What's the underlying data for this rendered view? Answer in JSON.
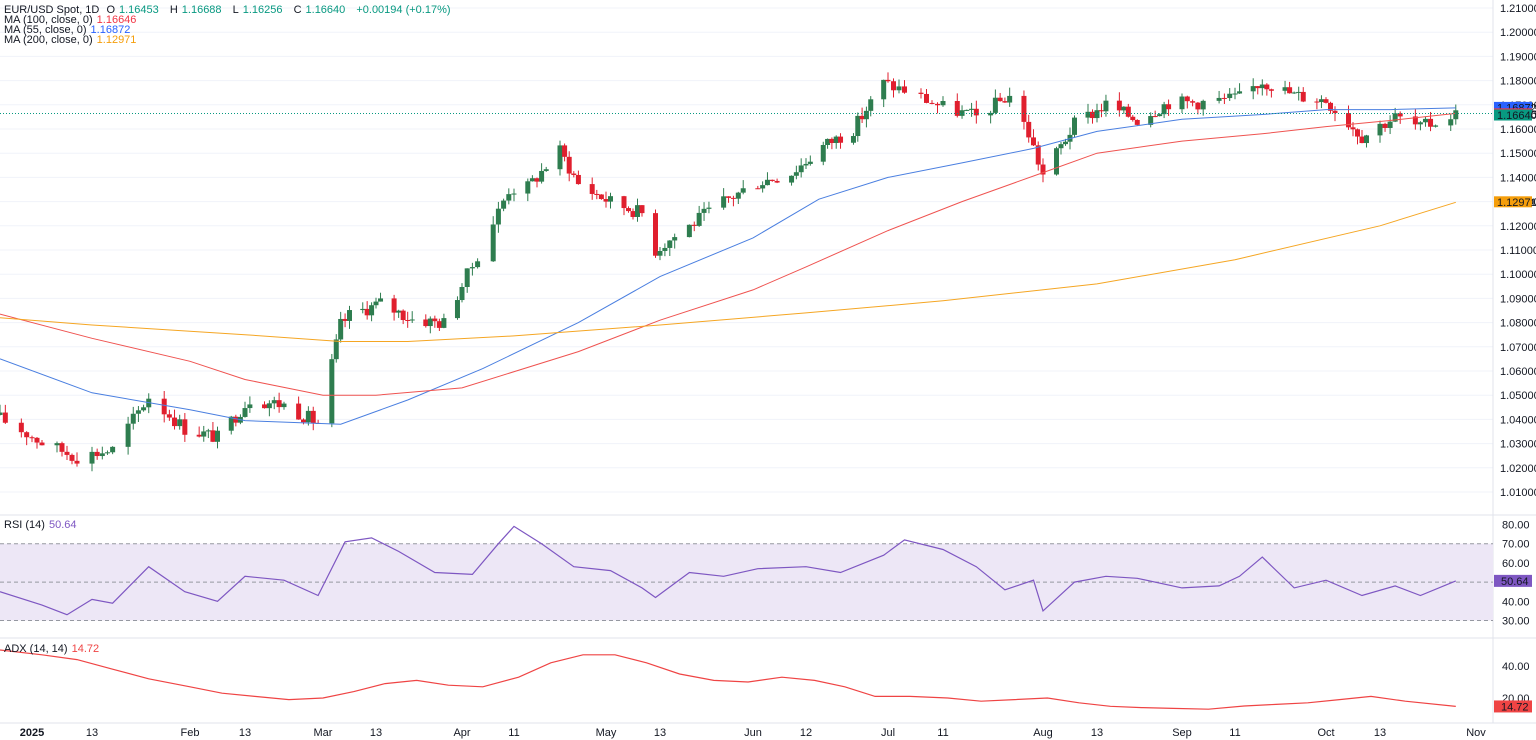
{
  "legend": {
    "title": "EUR/USD Spot, 1D",
    "o_label": "O",
    "o": "1.16453",
    "h_label": "H",
    "h": "1.16688",
    "l_label": "L",
    "l": "1.16256",
    "c_label": "C",
    "c": "1.16640",
    "chg": "+0.00194 (+0.17%)",
    "ma100_label": "MA (100, close, 0)",
    "ma100": "1.16646",
    "ma55_label": "MA (55, close, 0)",
    "ma55": "1.16872",
    "ma200_label": "MA (200, close, 0)",
    "ma200": "1.12971",
    "rsi_label": "RSI (14)",
    "rsi": "50.64",
    "adx_label": "ADX (14, 14)",
    "adx": "14.72"
  },
  "colors": {
    "up": "#089981",
    "candle_up": "#2e7d4f",
    "candle_down": "#e01f2e",
    "ma55": "#4a7fe0",
    "ma100": "#ef5350",
    "ma200": "#f5a623",
    "rsi": "#7e57c2",
    "rsi_band": "#ede7f6",
    "adx": "#ef4444",
    "last_price": "#089981"
  },
  "chart_data": [
    {
      "type": "candlestick",
      "title": "EUR/USD Spot, 1D",
      "y_ticks": [
        1.21,
        1.2,
        1.19,
        1.18,
        1.17,
        1.16,
        1.15,
        1.14,
        1.13,
        1.12,
        1.11,
        1.1,
        1.09,
        1.08,
        1.07,
        1.06,
        1.05,
        1.04,
        1.03,
        1.02,
        1.01
      ],
      "y_tick_labels": [
        "1.21000",
        "1.20000",
        "1.19000",
        "1.18000",
        "1.17000",
        "1.16000",
        "1.15000",
        "1.14000",
        "1.13000",
        "1.12000",
        "1.11000",
        "1.10000",
        "1.09000",
        "1.08000",
        "1.07000",
        "1.06000",
        "1.05000",
        "1.04000",
        "1.03000",
        "1.02000",
        "1.01000"
      ],
      "x_tick_labels": [
        "2025",
        "13",
        "Feb",
        "13",
        "Mar",
        "13",
        "Apr",
        "11",
        "May",
        "13",
        "Jun",
        "12",
        "Jul",
        "11",
        "Aug",
        "13",
        "Sep",
        "11",
        "Oct",
        "13",
        "Nov"
      ],
      "x_tick_dates": [
        "2025-01-01",
        "2025-01-13",
        "2025-02-01",
        "2025-02-13",
        "2025-03-01",
        "2025-03-13",
        "2025-04-01",
        "2025-04-11",
        "2025-05-01",
        "2025-05-13",
        "2025-06-01",
        "2025-06-12",
        "2025-07-01",
        "2025-07-11",
        "2025-08-01",
        "2025-08-13",
        "2025-09-01",
        "2025-09-11",
        "2025-10-01",
        "2025-10-13",
        "2025-11-01"
      ],
      "price_labels": [
        {
          "value": 1.16872,
          "text": "1.16872",
          "color": "#2962ff"
        },
        {
          "value": 1.16646,
          "text": "1.16646",
          "color": "#f23645"
        },
        {
          "value": 1.1664,
          "text": "1.16640",
          "color": "#089981"
        },
        {
          "value": 1.12971,
          "text": "1.12971",
          "color": "#f59e0b"
        }
      ],
      "close_series": {
        "dates": [
          "2024-12-26",
          "2025-01-03",
          "2025-01-10",
          "2025-01-17",
          "2025-01-24",
          "2025-01-31",
          "2025-02-07",
          "2025-02-14",
          "2025-02-21",
          "2025-02-28",
          "2025-03-05",
          "2025-03-07",
          "2025-03-14",
          "2025-03-21",
          "2025-03-28",
          "2025-04-03",
          "2025-04-10",
          "2025-04-14",
          "2025-04-21",
          "2025-04-25",
          "2025-05-02",
          "2025-05-09",
          "2025-05-12",
          "2025-05-19",
          "2025-05-26",
          "2025-06-02",
          "2025-06-09",
          "2025-06-16",
          "2025-06-23",
          "2025-06-30",
          "2025-07-04",
          "2025-07-11",
          "2025-07-18",
          "2025-07-25",
          "2025-07-29",
          "2025-08-01",
          "2025-08-08",
          "2025-08-15",
          "2025-08-22",
          "2025-08-29",
          "2025-09-05",
          "2025-09-12",
          "2025-09-17",
          "2025-09-24",
          "2025-10-01",
          "2025-10-09",
          "2025-10-16",
          "2025-10-21",
          "2025-10-28"
        ],
        "close": [
          1.0405,
          1.0305,
          1.0245,
          1.0275,
          1.0495,
          1.0362,
          1.0325,
          1.0485,
          1.046,
          1.0385,
          1.079,
          1.083,
          1.088,
          1.0815,
          1.0798,
          1.1035,
          1.135,
          1.136,
          1.151,
          1.1372,
          1.13,
          1.1253,
          1.11,
          1.12,
          1.13,
          1.138,
          1.142,
          1.153,
          1.16,
          1.179,
          1.176,
          1.169,
          1.165,
          1.174,
          1.158,
          1.141,
          1.162,
          1.17,
          1.164,
          1.171,
          1.171,
          1.173,
          1.18,
          1.174,
          1.172,
          1.157,
          1.165,
          1.1605,
          1.1664
        ]
      },
      "ma": [
        {
          "name": "MA (55, close, 0)",
          "dates": [
            "2024-12-26",
            "2025-01-13",
            "2025-02-01",
            "2025-02-13",
            "2025-03-05",
            "2025-03-20",
            "2025-04-05",
            "2025-04-25",
            "2025-05-13",
            "2025-06-01",
            "2025-06-15",
            "2025-07-01",
            "2025-07-15",
            "2025-07-30",
            "2025-08-13",
            "2025-09-01",
            "2025-09-17",
            "2025-10-01",
            "2025-10-15",
            "2025-10-28"
          ],
          "values": [
            1.065,
            1.051,
            1.044,
            1.0395,
            1.038,
            1.048,
            1.061,
            1.08,
            1.099,
            1.115,
            1.131,
            1.14,
            1.146,
            1.152,
            1.159,
            1.164,
            1.166,
            1.168,
            1.168,
            1.1687
          ]
        },
        {
          "name": "MA (100, close, 0)",
          "dates": [
            "2024-12-26",
            "2025-01-13",
            "2025-02-01",
            "2025-02-13",
            "2025-03-01",
            "2025-03-13",
            "2025-04-01",
            "2025-04-25",
            "2025-05-13",
            "2025-06-01",
            "2025-06-12",
            "2025-07-01",
            "2025-07-15",
            "2025-08-01",
            "2025-08-13",
            "2025-09-01",
            "2025-09-17",
            "2025-10-01",
            "2025-10-15",
            "2025-10-28"
          ],
          "values": [
            1.0835,
            1.0735,
            1.064,
            1.0565,
            1.05,
            1.05,
            1.053,
            1.068,
            1.081,
            1.0935,
            1.103,
            1.118,
            1.13,
            1.142,
            1.15,
            1.155,
            1.158,
            1.161,
            1.1635,
            1.16646
          ]
        },
        {
          "name": "MA (200, close, 0)",
          "dates": [
            "2024-12-26",
            "2025-01-13",
            "2025-02-13",
            "2025-03-05",
            "2025-03-20",
            "2025-04-11",
            "2025-05-13",
            "2025-06-12",
            "2025-07-11",
            "2025-08-13",
            "2025-09-11",
            "2025-10-13",
            "2025-10-28"
          ],
          "values": [
            1.082,
            1.079,
            1.075,
            1.0722,
            1.0722,
            1.0745,
            1.079,
            1.084,
            1.089,
            1.096,
            1.106,
            1.12,
            1.12971
          ]
        }
      ]
    },
    {
      "type": "line",
      "title": "RSI (14)",
      "y_tick_labels": [
        "80.00",
        "70.00",
        "60.00",
        "40.00",
        "30.00"
      ],
      "y_ticks": [
        80,
        70,
        60,
        40,
        30
      ],
      "band": [
        30,
        70
      ],
      "midline": 50,
      "last_label": "50.64",
      "dates": [
        "2024-12-26",
        "2025-01-03",
        "2025-01-08",
        "2025-01-13",
        "2025-01-17",
        "2025-01-24",
        "2025-01-31",
        "2025-02-07",
        "2025-02-13",
        "2025-02-21",
        "2025-02-28",
        "2025-03-06",
        "2025-03-12",
        "2025-03-18",
        "2025-03-26",
        "2025-04-03",
        "2025-04-08",
        "2025-04-11",
        "2025-04-17",
        "2025-04-24",
        "2025-05-02",
        "2025-05-09",
        "2025-05-12",
        "2025-05-19",
        "2025-05-26",
        "2025-06-02",
        "2025-06-12",
        "2025-06-20",
        "2025-06-30",
        "2025-07-04",
        "2025-07-11",
        "2025-07-18",
        "2025-07-24",
        "2025-07-30",
        "2025-08-01",
        "2025-08-08",
        "2025-08-15",
        "2025-08-22",
        "2025-09-01",
        "2025-09-08",
        "2025-09-12",
        "2025-09-17",
        "2025-09-24",
        "2025-10-01",
        "2025-10-09",
        "2025-10-16",
        "2025-10-21",
        "2025-10-28"
      ],
      "values": [
        45,
        38,
        33,
        41,
        39,
        58,
        45,
        40,
        53,
        51,
        43,
        71,
        73,
        66,
        55,
        54,
        70,
        79,
        70,
        58,
        56,
        47,
        42,
        55,
        53,
        57,
        58,
        55,
        64,
        72,
        67,
        58,
        46,
        51,
        35,
        50,
        53,
        52,
        47,
        48,
        53,
        63,
        47,
        51,
        43,
        48,
        43,
        50.64
      ]
    },
    {
      "type": "line",
      "title": "ADX (14, 14)",
      "y_tick_labels": [
        "40.00",
        "20.00"
      ],
      "y_ticks": [
        40,
        20
      ],
      "last_label": "14.72",
      "dates": [
        "2024-12-26",
        "2025-01-03",
        "2025-01-10",
        "2025-01-17",
        "2025-01-24",
        "2025-02-01",
        "2025-02-08",
        "2025-02-15",
        "2025-02-22",
        "2025-03-01",
        "2025-03-08",
        "2025-03-15",
        "2025-03-22",
        "2025-03-29",
        "2025-04-05",
        "2025-04-12",
        "2025-04-19",
        "2025-04-26",
        "2025-05-03",
        "2025-05-10",
        "2025-05-17",
        "2025-05-24",
        "2025-05-31",
        "2025-06-07",
        "2025-06-14",
        "2025-06-21",
        "2025-06-28",
        "2025-07-05",
        "2025-07-12",
        "2025-07-19",
        "2025-07-26",
        "2025-08-02",
        "2025-08-09",
        "2025-08-16",
        "2025-08-23",
        "2025-08-30",
        "2025-09-06",
        "2025-09-13",
        "2025-09-20",
        "2025-09-27",
        "2025-10-04",
        "2025-10-11",
        "2025-10-18",
        "2025-10-28"
      ],
      "values": [
        50,
        47,
        44,
        38,
        32,
        27,
        23,
        21,
        19,
        20,
        24,
        29,
        31,
        28,
        27,
        33,
        42,
        47,
        47,
        42,
        35,
        31,
        30,
        33,
        31,
        27,
        21,
        21,
        20,
        18,
        19,
        20,
        17,
        14.8,
        14,
        13.5,
        13,
        15,
        16,
        17,
        19,
        21,
        18,
        14.72
      ]
    }
  ]
}
